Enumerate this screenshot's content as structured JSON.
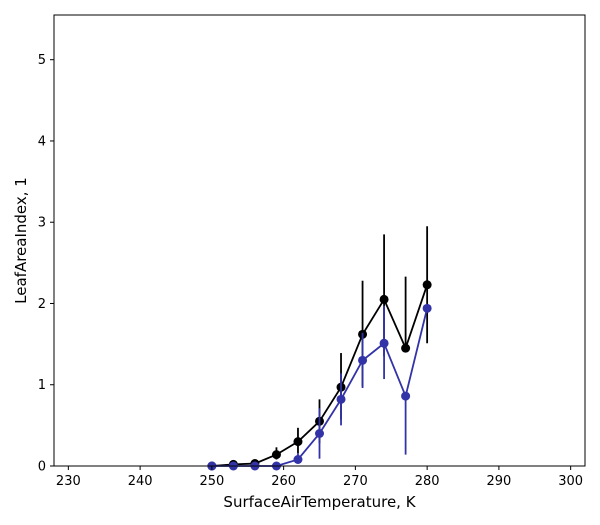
{
  "chart_data": {
    "type": "line",
    "title": "",
    "xlabel": "SurfaceAirTemperature,  K",
    "ylabel": "LeafAreaIndex,  1",
    "xlim": [
      228,
      302
    ],
    "ylim": [
      0,
      5.55
    ],
    "xticks": [
      230,
      240,
      250,
      260,
      270,
      280,
      290,
      300
    ],
    "yticks": [
      0,
      1,
      2,
      3,
      4,
      5
    ],
    "grid": false,
    "legend": "none",
    "series": [
      {
        "color": "#000000",
        "x": [
          250.0,
          253.0,
          256.0,
          259.0,
          262.0,
          265.0,
          268.0,
          271.0,
          274.0,
          277.0,
          280.0
        ],
        "y": [
          0.0,
          0.02,
          0.03,
          0.14,
          0.3,
          0.55,
          0.97,
          1.62,
          2.05,
          1.45,
          2.23
        ],
        "err_low": [
          0.0,
          0.02,
          0.03,
          0.06,
          0.14,
          0.27,
          0.4,
          0.64,
          0.7,
          0.0,
          0.72
        ],
        "err_high": [
          0.0,
          0.02,
          0.03,
          0.09,
          0.17,
          0.27,
          0.42,
          0.66,
          0.8,
          0.88,
          0.72
        ]
      },
      {
        "color": "#3333a8",
        "x": [
          250.0,
          253.0,
          256.0,
          259.0,
          262.0,
          265.0,
          268.0,
          271.0,
          274.0,
          277.0,
          280.0
        ],
        "y": [
          0.0,
          0.0,
          0.0,
          0.0,
          0.08,
          0.4,
          0.82,
          1.3,
          1.51,
          0.86,
          1.94
        ],
        "err_low": [
          0.0,
          0.0,
          0.0,
          0.0,
          0.05,
          0.31,
          0.32,
          0.34,
          0.44,
          0.72,
          0.0
        ],
        "err_high": [
          0.0,
          0.0,
          0.0,
          0.0,
          0.08,
          0.31,
          0.32,
          0.34,
          0.46,
          0.0,
          0.0
        ]
      }
    ]
  }
}
